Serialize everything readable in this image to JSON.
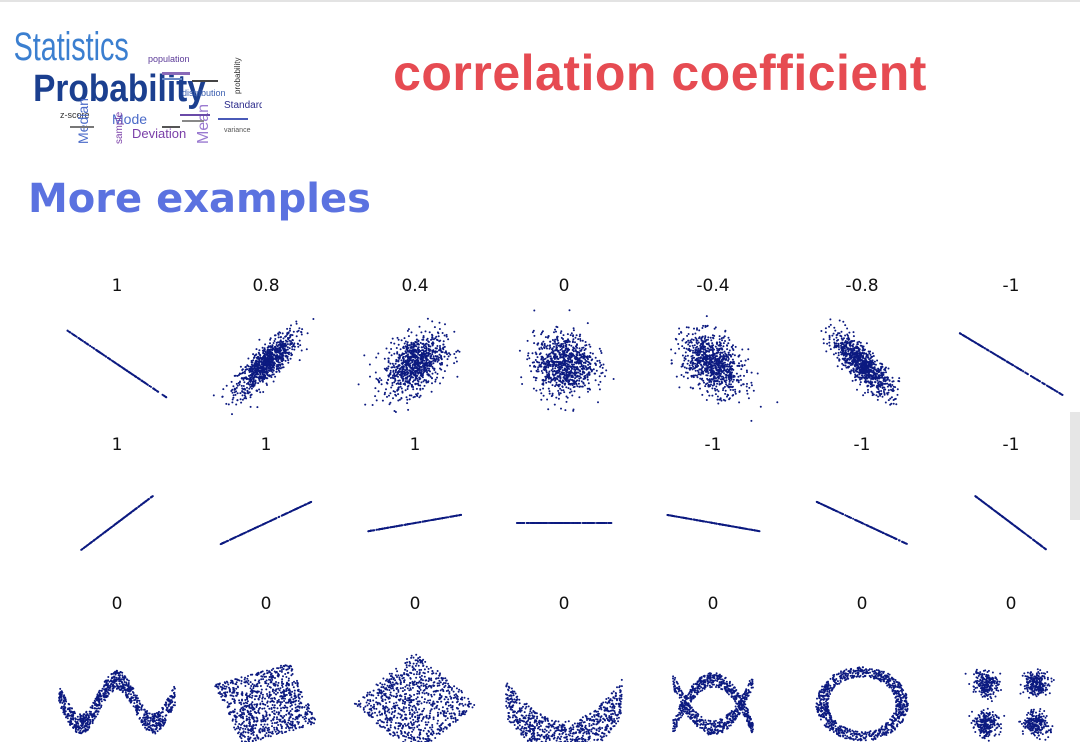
{
  "header": {
    "title": "correlation coefficient",
    "subtitle": "More examples"
  },
  "logo": {
    "icon": "statistics-word-cloud-logo",
    "words": [
      "Statistics",
      "Probability",
      "population",
      "distribution",
      "Standard",
      "Deviation",
      "Mean",
      "Median",
      "Mode",
      "z-score",
      "sample",
      "variance"
    ]
  },
  "chart_data": {
    "type": "scatter",
    "title": "",
    "grid": false,
    "rows": [
      {
        "labels": [
          "1",
          "0.8",
          "0.4",
          "0",
          "-0.4",
          "-0.8",
          "-1"
        ],
        "shapes": [
          "line+1",
          "corr0.8",
          "corr0.4",
          "corr0",
          "corr-0.4",
          "corr-0.8",
          "line-1"
        ]
      },
      {
        "labels": [
          "1",
          "1",
          "1",
          "",
          "-1",
          "-1",
          "-1"
        ],
        "shapes": [
          "slope45",
          "slope25",
          "slope10",
          "slope0",
          "slope-10",
          "slope-25",
          "slope-45"
        ]
      },
      {
        "labels": [
          "0",
          "0",
          "0",
          "0",
          "0",
          "0",
          "0"
        ],
        "shapes": [
          "wave",
          "tilted-square",
          "diamond",
          "parabola",
          "x-shape",
          "ring",
          "four-clusters"
        ]
      }
    ]
  },
  "colors": {
    "title": "#e64b52",
    "subtitle": "#5b72e0",
    "points": "#0c1a80"
  }
}
